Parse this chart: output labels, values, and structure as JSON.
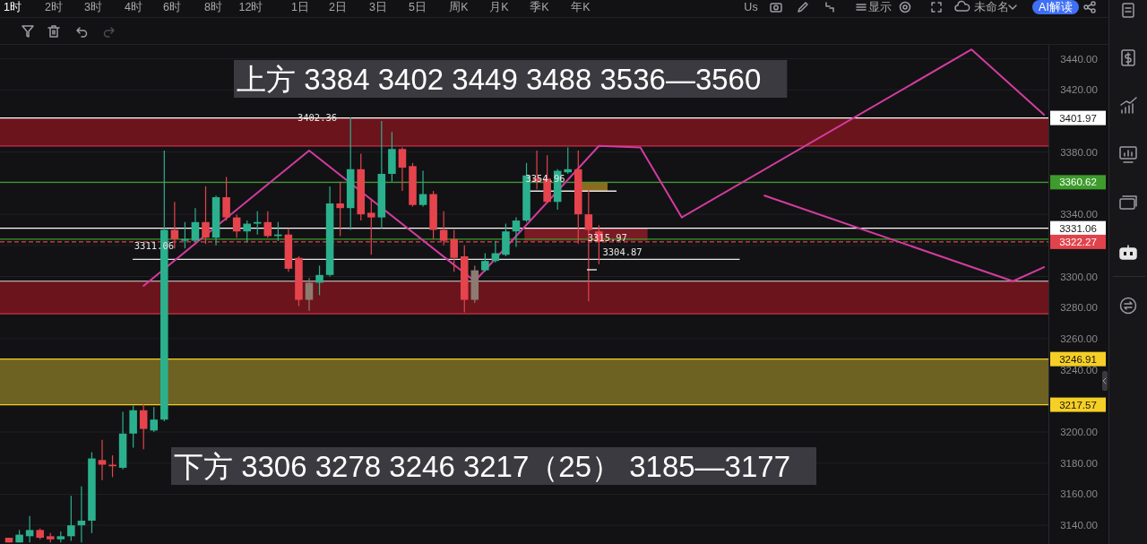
{
  "chart_data": {
    "type": "candlestick",
    "categories": [
      null,
      null,
      null,
      null,
      null,
      null,
      null,
      null,
      null,
      null,
      null,
      null,
      null,
      null,
      null,
      null,
      null,
      null,
      null,
      null,
      null,
      null,
      null,
      null,
      null,
      null,
      null,
      null,
      null,
      null,
      null,
      null,
      null,
      null,
      null,
      null,
      null,
      null,
      null,
      null,
      null,
      null,
      null,
      null,
      null,
      null,
      null,
      null,
      null,
      null,
      null,
      null,
      null,
      null,
      null,
      null,
      null,
      null,
      null,
      null,
      null,
      null,
      null,
      null,
      null,
      null,
      null,
      null,
      null,
      null,
      null,
      null,
      null,
      null,
      null,
      null,
      null,
      null,
      null,
      null,
      null,
      null,
      null,
      null,
      null,
      null,
      null,
      null,
      null,
      null,
      null,
      null,
      null,
      null,
      null,
      null,
      null,
      null,
      null,
      null,
      null
    ],
    "ohlc": [
      [
        3132,
        3132,
        3129,
        3129
      ],
      [
        3129,
        3137,
        3129,
        3134
      ],
      [
        3133,
        3146,
        3129,
        3137
      ],
      [
        3137,
        3138,
        3131,
        3132
      ],
      [
        3133,
        3135,
        3129,
        3131
      ],
      [
        3131,
        3136,
        3129,
        3133
      ],
      [
        3133,
        3159,
        3130,
        3140
      ],
      [
        3140,
        3165,
        3129,
        3143
      ],
      [
        3143,
        3187,
        3135,
        3183
      ],
      [
        3182,
        3195,
        3169,
        3179
      ],
      [
        3179,
        3185,
        3171,
        3178
      ],
      [
        3177,
        3213,
        3176,
        3199
      ],
      [
        3199,
        3217,
        3190,
        3214
      ],
      [
        3214,
        3218,
        3189,
        3202
      ],
      [
        3201,
        3216,
        3200,
        3208
      ],
      [
        3208,
        3381,
        3207,
        3330
      ],
      [
        3330,
        3348,
        3318,
        3324
      ],
      [
        3323,
        3335,
        3318,
        3324
      ],
      [
        3323,
        3344,
        3322,
        3335
      ],
      [
        3335,
        3358,
        3321,
        3325
      ],
      [
        3325,
        3352,
        3320,
        3351
      ],
      [
        3351,
        3364,
        3336,
        3338
      ],
      [
        3338,
        3340,
        3325,
        3329
      ],
      [
        3329,
        3336,
        3322,
        3334
      ],
      [
        3334,
        3342,
        3327,
        3335
      ],
      [
        3335,
        3342,
        3325,
        3326
      ],
      [
        3326,
        3335,
        3323,
        3327
      ],
      [
        3327,
        3331,
        3303,
        3305
      ],
      [
        3312,
        3313,
        3281,
        3285
      ],
      [
        3285,
        3299,
        3278,
        3296
      ],
      [
        3296,
        3307,
        3288,
        3301
      ],
      [
        3301,
        3358,
        3300,
        3347
      ],
      [
        3347,
        3361,
        3326,
        3344
      ],
      [
        3344,
        3402.36,
        3330,
        3369
      ],
      [
        3369,
        3379,
        3336,
        3340
      ],
      [
        3341,
        3350,
        3314,
        3338
      ],
      [
        3338,
        3400,
        3331,
        3366
      ],
      [
        3366,
        3393,
        3361,
        3382
      ],
      [
        3382,
        3383,
        3355,
        3370
      ],
      [
        3371,
        3373,
        3345,
        3346
      ],
      [
        3346,
        3368,
        3345,
        3353
      ],
      [
        3353,
        3355,
        3324,
        3330
      ],
      [
        3330,
        3342,
        3320,
        3323
      ],
      [
        3324,
        3330,
        3303,
        3312
      ],
      [
        3313,
        3320,
        3277,
        3285
      ],
      [
        3285,
        3307,
        3283,
        3304
      ],
      [
        3304,
        3315,
        3303,
        3310
      ],
      [
        3310,
        3323,
        3309,
        3315
      ],
      [
        3314,
        3334,
        3313,
        3329
      ],
      [
        3329,
        3338,
        3319,
        3336
      ],
      [
        3336,
        3373,
        3335,
        3365
      ],
      [
        3363,
        3381,
        3356,
        3361
      ],
      [
        3363,
        3378,
        3347,
        3348
      ],
      [
        3348,
        3369,
        3343,
        3368
      ],
      [
        3367,
        3383,
        3366,
        3369
      ],
      [
        3369,
        3381,
        3321,
        3340
      ],
      [
        3340,
        3356,
        3284,
        3330
      ],
      [
        3329,
        3333,
        3308,
        3322.27
      ],
      null,
      null,
      null,
      null,
      null,
      null,
      null,
      null,
      null,
      null,
      null,
      null,
      null,
      null,
      null,
      null,
      null,
      null,
      null,
      null,
      null,
      null,
      null,
      null,
      null,
      null,
      null,
      null,
      null,
      null,
      null,
      null,
      null,
      null,
      null,
      null,
      null,
      null,
      null,
      null,
      null,
      null,
      null
    ],
    "colors": [
      "#e5444d",
      "#2bb08d",
      "#2bb08d",
      "#e5444d",
      "#e5444d",
      "#2bb08d",
      "#2bb08d",
      "#2bb08d",
      "#2bb08d",
      "#e5444d",
      "#e5444d",
      "#2bb08d",
      "#2bb08d",
      "#e5444d",
      "#2bb08d",
      "#2bb08d",
      "#e5444d",
      "#2bb08d",
      "#2bb08d",
      "#e5444d",
      "#2bb08d",
      "#e5444d",
      "#e5444d",
      "#2bb08d",
      "#2bb08d",
      "#e5444d",
      "#2bb08d",
      "#e5444d",
      "#e5444d",
      "#8c7b70",
      "#2bb08d",
      "#2bb08d",
      "#e5444d",
      "#2bb08d",
      "#e5444d",
      "#e5444d",
      "#2bb08d",
      "#2bb08d",
      "#e5444d",
      "#e5444d",
      "#2bb08d",
      "#e5444d",
      "#e5444d",
      "#e5444d",
      "#e5444d",
      "#8c7b70",
      "#2bb08d",
      "#2bb08d",
      "#2bb08d",
      "#2bb08d",
      "#2bb08d",
      "#e5444d",
      "#e5444d",
      "#2bb08d",
      "#2bb08d",
      "#e5444d",
      "#e5444d",
      "#e5444d",
      null,
      null,
      null,
      null,
      null,
      null,
      null,
      null,
      null,
      null,
      null,
      null,
      null,
      null,
      null,
      null,
      null,
      null,
      null,
      null,
      null,
      null,
      null,
      null,
      null,
      null,
      null,
      null,
      null,
      null,
      null,
      null,
      null,
      null,
      null,
      null,
      null,
      null,
      null,
      null,
      null,
      null,
      null
    ],
    "series": [
      {
        "type": "line",
        "color": "#d33c9e",
        "values": [
          null,
          null,
          null,
          null,
          null,
          null,
          null,
          null,
          null,
          null,
          null,
          null,
          null,
          3294,
          null,
          null,
          null,
          null,
          null,
          null,
          null,
          null,
          null,
          null,
          null,
          null,
          null,
          null,
          null,
          3381,
          null,
          null,
          null,
          null,
          null,
          null,
          null,
          null,
          null,
          null,
          null,
          null,
          null,
          null,
          null,
          3297,
          null,
          null,
          null,
          null,
          null,
          null,
          null,
          null,
          null,
          null,
          null,
          3384,
          null,
          null,
          null,
          3383,
          null,
          null,
          null,
          3338,
          null,
          null,
          null,
          null,
          null,
          null,
          null,
          null,
          null,
          null,
          null,
          null,
          null,
          null,
          null,
          null,
          null,
          null,
          null,
          null,
          null,
          null,
          null,
          null,
          null,
          null,
          null,
          3446,
          null,
          null,
          null,
          null,
          null,
          null,
          3404
        ]
      },
      {
        "type": "line",
        "color": "#d33c9e",
        "values": [
          null,
          null,
          null,
          null,
          null,
          null,
          null,
          null,
          null,
          null,
          null,
          null,
          null,
          null,
          null,
          null,
          null,
          null,
          null,
          null,
          null,
          null,
          null,
          null,
          null,
          null,
          null,
          null,
          null,
          null,
          null,
          null,
          null,
          null,
          null,
          null,
          null,
          null,
          null,
          null,
          null,
          null,
          null,
          null,
          null,
          null,
          null,
          null,
          null,
          null,
          null,
          null,
          null,
          null,
          null,
          null,
          null,
          null,
          null,
          null,
          null,
          null,
          null,
          null,
          null,
          null,
          null,
          null,
          null,
          null,
          null,
          null,
          null,
          3352,
          null,
          null,
          null,
          null,
          null,
          null,
          null,
          null,
          null,
          null,
          null,
          null,
          null,
          null,
          null,
          null,
          null,
          null,
          null,
          null,
          null,
          null,
          null,
          3297,
          null,
          null,
          3306
        ]
      }
    ],
    "ylim": [
      3128,
      3449
    ],
    "yticks": [
      {
        "value": 3140,
        "label": "3140.00"
      },
      {
        "value": 3160,
        "label": "3160.00"
      },
      {
        "value": 3180,
        "label": "3180.00"
      },
      {
        "value": 3200,
        "label": "3200.00"
      },
      {
        "value": 3240,
        "label": "3240.00"
      },
      {
        "value": 3260,
        "label": "3260.00"
      },
      {
        "value": 3280,
        "label": "3280.00"
      },
      {
        "value": 3300,
        "label": "3300.00"
      },
      {
        "value": 3320,
        "label": null
      },
      {
        "value": 3340,
        "label": "3340.00"
      },
      {
        "value": 3360,
        "label": null
      },
      {
        "value": 3380,
        "label": "3380.00"
      },
      {
        "value": 3420,
        "label": "3420.00"
      },
      {
        "value": 3440,
        "label": "3440.00"
      }
    ],
    "grid": "y",
    "tick_labels": "y",
    "bands": [
      {
        "axis": "y",
        "from": 3384,
        "to": 3401.97,
        "color": "#6b141c"
      },
      {
        "axis": "y",
        "from": 3276,
        "to": 3297,
        "color": "#6b141c"
      },
      {
        "axis": "y",
        "from": 3217.57,
        "to": 3246.91,
        "color": "#6d6222"
      },
      {
        "axis": "y",
        "from": 3323,
        "to": 3331.06,
        "color": "#7a1a24"
      }
    ],
    "ref_lines": [
      {
        "axis": "y",
        "value": 3401.97,
        "label": "3401.97",
        "color": "#ffffff"
      },
      {
        "axis": "y",
        "value": 3384,
        "color": "#c8324a"
      },
      {
        "axis": "y",
        "value": 3360.62,
        "label": "3360.62",
        "color": "#3d9c2c"
      },
      {
        "axis": "y",
        "value": 3354.96,
        "color": "#e8e8e8"
      },
      {
        "axis": "y",
        "value": 3331.06,
        "label": "3331.06",
        "color": "#ffffff"
      },
      {
        "axis": "y",
        "value": 3324,
        "color": "#3d9c2c"
      },
      {
        "axis": "y",
        "value": 3322.27,
        "label": "3322.27",
        "color": "#e0434b",
        "line_style": "dashed"
      },
      {
        "axis": "y",
        "value": 3311.06,
        "color": "#e8e8e8"
      },
      {
        "axis": "y",
        "value": 3297,
        "color": "#d8d8d8"
      },
      {
        "axis": "y",
        "value": 3276,
        "color": "#c8324a"
      },
      {
        "axis": "y",
        "value": 3246.91,
        "label": "3246.91",
        "color": "#f5cf25"
      },
      {
        "axis": "y",
        "value": 3217.57,
        "label": "3217.57",
        "color": "#f5cf25"
      }
    ],
    "annotations": [
      "上方 3384 3402 3449 3488 3536—3560",
      "下方 3306 3278 3246 3217（25） 3185—3177",
      {
        "text": "3402.36",
        "y": 3402.36
      },
      {
        "text": "3354.96",
        "y": 3354.96
      },
      "3315.97",
      {
        "text": "3311.06",
        "y": 3311.06
      },
      "3304.87",
      "1时",
      "2时",
      "3时",
      "4时",
      "6时",
      "8时",
      "12时",
      "1日",
      "2日",
      "3日",
      "5日",
      "周K",
      "月K",
      "季K",
      "年K",
      "Us",
      "显示",
      "未命名",
      "AI解读"
    ]
  }
}
